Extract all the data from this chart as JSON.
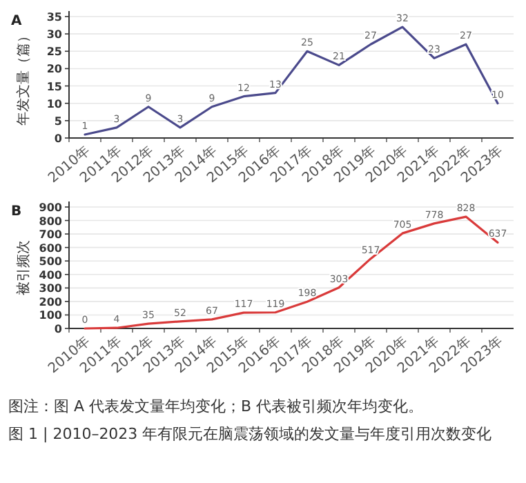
{
  "chart_data": [
    {
      "type": "line",
      "title": "A",
      "ylabel": "年发文量（篇）",
      "categories": [
        "2010年",
        "2011年",
        "2012年",
        "2013年",
        "2014年",
        "2015年",
        "2016年",
        "2017年",
        "2018年",
        "2019年",
        "2020年",
        "2021年",
        "2022年",
        "2023年"
      ],
      "values": [
        1,
        3,
        9,
        3,
        9,
        12,
        13,
        25,
        21,
        27,
        32,
        23,
        27,
        10
      ],
      "color": "#4b4a8c",
      "ylim": [
        0,
        35
      ],
      "yticks": [
        0,
        5,
        10,
        15,
        20,
        25,
        30,
        35
      ],
      "grid": "y",
      "data_labels": true
    },
    {
      "type": "line",
      "title": "B",
      "ylabel": "被引频次",
      "categories": [
        "2010年",
        "2011年",
        "2012年",
        "2013年",
        "2014年",
        "2015年",
        "2016年",
        "2017年",
        "2018年",
        "2019年",
        "2020年",
        "2021年",
        "2022年",
        "2023年"
      ],
      "values": [
        0,
        4,
        35,
        52,
        67,
        117,
        119,
        198,
        303,
        517,
        705,
        778,
        828,
        637
      ],
      "color": "#d93a3a",
      "ylim": [
        0,
        900
      ],
      "yticks": [
        0,
        100,
        200,
        300,
        400,
        500,
        600,
        700,
        800,
        900
      ],
      "grid": "y",
      "data_labels": true,
      "annotations": [
        "图注：图 A 代表发文量年均变化；B 代表被引频次年均变化。",
        "图 1 | 2010–2023 年有限元在脑震荡领域的发文量与年度引用次数变化"
      ]
    }
  ]
}
